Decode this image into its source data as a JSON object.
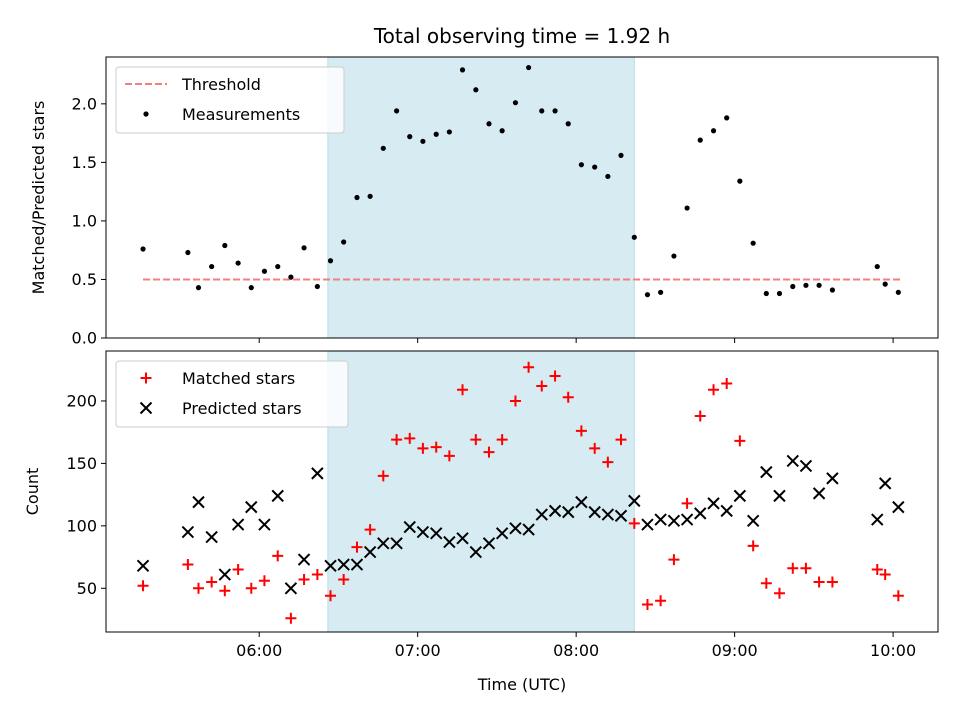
{
  "chart_data": [
    {
      "type": "scatter",
      "title": "Total observing time = 1.92 h",
      "ylabel": "Matched/Predicted stars",
      "xlim": [
        5.0333,
        10.2833
      ],
      "ylim": [
        0,
        2.4
      ],
      "yticks": [
        0.0,
        0.5,
        1.0,
        1.5,
        2.0
      ],
      "ytick_labels": [
        "0.0",
        "0.5",
        "1.0",
        "1.5",
        "2.0"
      ],
      "grid": false,
      "legend": "top-left",
      "shaded_region": [
        6.433,
        8.367
      ],
      "shade_color": "#add8e6",
      "threshold": {
        "name": "Threshold",
        "y": 0.5,
        "x_range": [
          5.267,
          10.05
        ],
        "color": "#f08080"
      },
      "series": [
        {
          "name": "Measurements",
          "marker": "dot",
          "color": "#000000",
          "x": [
            5.267,
            5.55,
            5.617,
            5.7,
            5.783,
            5.867,
            5.95,
            6.033,
            6.117,
            6.2,
            6.283,
            6.367,
            6.45,
            6.533,
            6.617,
            6.7,
            6.783,
            6.867,
            6.95,
            7.033,
            7.117,
            7.2,
            7.283,
            7.367,
            7.45,
            7.533,
            7.617,
            7.7,
            7.783,
            7.867,
            7.95,
            8.033,
            8.117,
            8.2,
            8.283,
            8.367,
            8.45,
            8.533,
            8.617,
            8.7,
            8.783,
            8.867,
            8.95,
            9.033,
            9.117,
            9.2,
            9.283,
            9.367,
            9.45,
            9.533,
            9.617,
            9.9,
            9.95,
            10.033
          ],
          "y": [
            0.76,
            0.73,
            0.43,
            0.61,
            0.79,
            0.64,
            0.43,
            0.57,
            0.61,
            0.52,
            0.77,
            0.44,
            0.66,
            0.82,
            1.2,
            1.21,
            1.62,
            1.94,
            1.72,
            1.68,
            1.74,
            1.76,
            2.29,
            2.12,
            1.83,
            1.77,
            2.01,
            2.31,
            1.94,
            1.94,
            1.83,
            1.48,
            1.46,
            1.38,
            1.56,
            0.86,
            0.37,
            0.39,
            0.7,
            1.11,
            1.69,
            1.77,
            1.88,
            1.34,
            0.81,
            0.38,
            0.38,
            0.44,
            0.45,
            0.45,
            0.41,
            0.61,
            0.46,
            0.39
          ]
        }
      ]
    },
    {
      "type": "scatter",
      "xlabel": "Time (UTC)",
      "ylabel": "Count",
      "xlim": [
        5.0333,
        10.2833
      ],
      "ylim": [
        15,
        240
      ],
      "xticks": [
        6,
        7,
        8,
        9,
        10
      ],
      "xtick_labels": [
        "06:00",
        "07:00",
        "08:00",
        "09:00",
        "10:00"
      ],
      "yticks": [
        50,
        100,
        150,
        200
      ],
      "ytick_labels": [
        "50",
        "100",
        "150",
        "200"
      ],
      "grid": false,
      "legend": "top-left",
      "shaded_region": [
        6.433,
        8.367
      ],
      "shade_color": "#add8e6",
      "series": [
        {
          "name": "Matched stars",
          "marker": "plus",
          "color": "#ff0000",
          "x": [
            5.267,
            5.55,
            5.617,
            5.7,
            5.783,
            5.867,
            5.95,
            6.033,
            6.117,
            6.2,
            6.283,
            6.367,
            6.45,
            6.533,
            6.617,
            6.7,
            6.783,
            6.867,
            6.95,
            7.033,
            7.117,
            7.2,
            7.283,
            7.367,
            7.45,
            7.533,
            7.617,
            7.7,
            7.783,
            7.867,
            7.95,
            8.033,
            8.117,
            8.2,
            8.283,
            8.367,
            8.45,
            8.533,
            8.617,
            8.7,
            8.783,
            8.867,
            8.95,
            9.033,
            9.117,
            9.2,
            9.283,
            9.367,
            9.45,
            9.533,
            9.617,
            9.9,
            9.95,
            10.033
          ],
          "y": [
            52,
            69,
            50,
            55,
            48,
            65,
            50,
            56,
            76,
            26,
            57,
            61,
            44,
            57,
            83,
            97,
            140,
            169,
            170,
            162,
            163,
            156,
            209,
            169,
            159,
            169,
            200,
            227,
            212,
            220,
            203,
            176,
            162,
            151,
            169,
            102,
            37,
            40,
            73,
            118,
            188,
            209,
            214,
            168,
            84,
            54,
            46,
            66,
            66,
            55,
            55,
            65,
            61,
            44
          ]
        },
        {
          "name": "Predicted stars",
          "marker": "x",
          "color": "#000000",
          "x": [
            5.267,
            5.55,
            5.617,
            5.7,
            5.783,
            5.867,
            5.95,
            6.033,
            6.117,
            6.2,
            6.283,
            6.367,
            6.45,
            6.533,
            6.617,
            6.7,
            6.783,
            6.867,
            6.95,
            7.033,
            7.117,
            7.2,
            7.283,
            7.367,
            7.45,
            7.533,
            7.617,
            7.7,
            7.783,
            7.867,
            7.95,
            8.033,
            8.117,
            8.2,
            8.283,
            8.367,
            8.45,
            8.533,
            8.617,
            8.7,
            8.783,
            8.867,
            8.95,
            9.033,
            9.117,
            9.2,
            9.283,
            9.367,
            9.45,
            9.533,
            9.617,
            9.9,
            9.95,
            10.033
          ],
          "y": [
            68,
            95,
            119,
            91,
            61,
            101,
            115,
            101,
            124,
            50,
            73,
            142,
            68,
            69,
            69,
            79,
            86,
            86,
            99,
            95,
            94,
            87,
            90,
            79,
            86,
            94,
            98,
            97,
            109,
            112,
            111,
            119,
            111,
            109,
            108,
            120,
            101,
            105,
            104,
            105,
            110,
            118,
            112,
            124,
            104,
            143,
            124,
            152,
            148,
            126,
            138,
            105,
            134,
            115
          ]
        }
      ]
    }
  ]
}
